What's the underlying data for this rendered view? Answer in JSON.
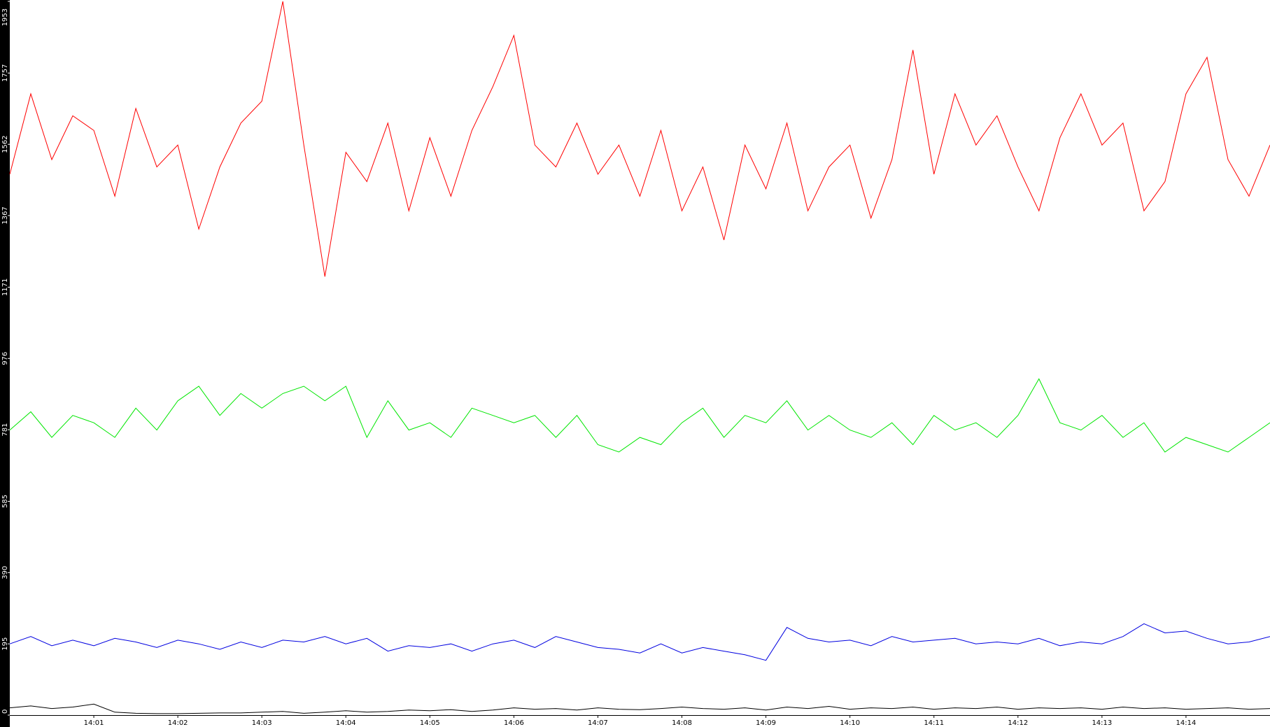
{
  "chart_data": {
    "type": "line",
    "categories": [
      null,
      null,
      null,
      null,
      "14:01",
      null,
      null,
      null,
      "14:02",
      null,
      null,
      null,
      "14:03",
      null,
      null,
      null,
      "14:04",
      null,
      null,
      null,
      "14:05",
      null,
      null,
      null,
      "14:06",
      null,
      null,
      null,
      "14:07",
      null,
      null,
      null,
      "14:08",
      null,
      null,
      null,
      "14:09",
      null,
      null,
      null,
      "14:10",
      null,
      null,
      null,
      "14:11",
      null,
      null,
      null,
      "14:12",
      null,
      null,
      null,
      "14:13",
      null,
      null,
      null,
      "14:14",
      null,
      null,
      null,
      null
    ],
    "series": [
      {
        "color": "#ff0000",
        "values": [
          1480,
          1700,
          1520,
          1640,
          1600,
          1420,
          1660,
          1500,
          1560,
          1330,
          1500,
          1620,
          1680,
          1953,
          1560,
          1200,
          1540,
          1460,
          1620,
          1380,
          1580,
          1420,
          1600,
          1720,
          1860,
          1560,
          1500,
          1620,
          1480,
          1560,
          1420,
          1600,
          1380,
          1500,
          1300,
          1560,
          1440,
          1620,
          1380,
          1500,
          1560,
          1360,
          1520,
          1820,
          1480,
          1700,
          1560,
          1640,
          1500,
          1380,
          1580,
          1700,
          1560,
          1620,
          1380,
          1460,
          1700,
          1800,
          1520,
          1420,
          1560
        ]
      },
      {
        "color": "#00e600",
        "values": [
          780,
          830,
          760,
          820,
          800,
          760,
          840,
          780,
          860,
          900,
          820,
          880,
          840,
          880,
          900,
          860,
          900,
          760,
          860,
          780,
          800,
          760,
          840,
          820,
          800,
          820,
          760,
          820,
          740,
          720,
          760,
          740,
          800,
          840,
          760,
          820,
          800,
          860,
          780,
          820,
          780,
          760,
          800,
          740,
          820,
          780,
          800,
          760,
          820,
          920,
          800,
          780,
          820,
          760,
          800,
          720,
          760,
          740,
          720,
          760,
          800
        ]
      },
      {
        "color": "#0000e0",
        "values": [
          195,
          215,
          190,
          205,
          190,
          210,
          200,
          185,
          205,
          195,
          180,
          200,
          185,
          205,
          200,
          215,
          195,
          210,
          175,
          190,
          185,
          195,
          175,
          195,
          205,
          185,
          215,
          200,
          185,
          180,
          170,
          195,
          170,
          185,
          175,
          165,
          150,
          240,
          210,
          200,
          205,
          190,
          215,
          200,
          205,
          210,
          195,
          200,
          195,
          210,
          190,
          200,
          195,
          215,
          250,
          225,
          230,
          210,
          195,
          200,
          215
        ]
      },
      {
        "color": "#000000",
        "values": [
          20,
          25,
          18,
          22,
          30,
          8,
          5,
          4,
          4,
          5,
          6,
          6,
          8,
          10,
          5,
          8,
          12,
          8,
          10,
          14,
          12,
          15,
          10,
          14,
          20,
          16,
          18,
          14,
          20,
          16,
          15,
          18,
          22,
          18,
          16,
          20,
          14,
          22,
          18,
          24,
          16,
          20,
          18,
          22,
          16,
          20,
          18,
          22,
          16,
          20,
          18,
          20,
          16,
          22,
          18,
          20,
          16,
          18,
          20,
          16,
          18
        ]
      }
    ],
    "ylim": [
      0,
      1953
    ],
    "yticks": [
      0,
      195,
      390,
      585,
      781,
      976,
      1171,
      1367,
      1562,
      1757,
      1953
    ]
  }
}
